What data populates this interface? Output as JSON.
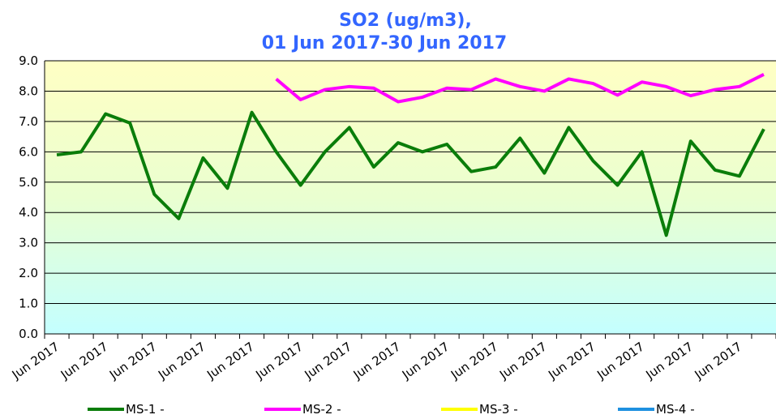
{
  "chart_data": {
    "type": "line",
    "title": "SO2 (ug/m3),",
    "subtitle": "01 Jun 2017-30 Jun 2017",
    "categories": [
      "Jun 2017",
      null,
      "Jun 2017",
      null,
      "Jun 2017",
      null,
      "Jun 2017",
      null,
      "Jun 2017",
      null,
      "Jun 2017",
      null,
      "Jun 2017",
      null,
      "Jun 2017",
      null,
      "Jun 2017",
      null,
      "Jun 2017",
      null,
      "Jun 2017",
      null,
      "Jun 2017",
      null,
      "Jun 2017",
      null,
      "Jun 2017",
      null,
      "Jun 2017",
      null
    ],
    "series": [
      {
        "name": "MS-1 -",
        "color": "#0a7d0a",
        "values": [
          5.9,
          6.0,
          7.25,
          6.95,
          4.6,
          3.8,
          5.8,
          4.8,
          7.3,
          6.0,
          4.9,
          6.0,
          6.8,
          5.5,
          6.3,
          6.0,
          6.25,
          5.35,
          5.5,
          6.45,
          5.3,
          6.8,
          5.7,
          4.9,
          6.0,
          3.25,
          6.35,
          5.4,
          5.2,
          6.75
        ]
      },
      {
        "name": "MS-2 -",
        "color": "#ff00ff",
        "values": [
          null,
          null,
          null,
          null,
          null,
          null,
          null,
          null,
          null,
          8.4,
          7.72,
          8.05,
          8.15,
          8.1,
          7.65,
          7.8,
          8.1,
          8.05,
          8.4,
          8.15,
          8.0,
          8.4,
          8.25,
          7.87,
          8.3,
          8.15,
          7.85,
          8.05,
          8.15,
          8.55
        ]
      },
      {
        "name": "MS-3 -",
        "color": "#ffff00",
        "values": [
          null,
          null,
          null,
          null,
          null,
          null,
          null,
          null,
          null,
          null,
          null,
          null,
          null,
          null,
          null,
          null,
          null,
          null,
          null,
          null,
          null,
          null,
          null,
          null,
          null,
          null,
          null,
          null,
          null,
          null
        ]
      },
      {
        "name": "MS-4 -",
        "color": "#1e90e0",
        "values": [
          null,
          null,
          null,
          null,
          null,
          null,
          null,
          null,
          null,
          null,
          null,
          null,
          null,
          null,
          null,
          null,
          null,
          null,
          null,
          null,
          null,
          null,
          null,
          null,
          null,
          null,
          null,
          null,
          null,
          null
        ]
      }
    ],
    "ylim": [
      0,
      9
    ],
    "yticks": [
      {
        "value": 0,
        "label": "0.0"
      },
      {
        "value": 1,
        "label": "1.0"
      },
      {
        "value": 2,
        "label": "2.0"
      },
      {
        "value": 3,
        "label": "3.0"
      },
      {
        "value": 4,
        "label": "4.0"
      },
      {
        "value": 5,
        "label": "5.0"
      },
      {
        "value": 6,
        "label": "6.0"
      },
      {
        "value": 7,
        "label": "7.0"
      },
      {
        "value": 8,
        "label": "8.0"
      },
      {
        "value": 9,
        "label": "9.0"
      }
    ],
    "grid": true
  }
}
